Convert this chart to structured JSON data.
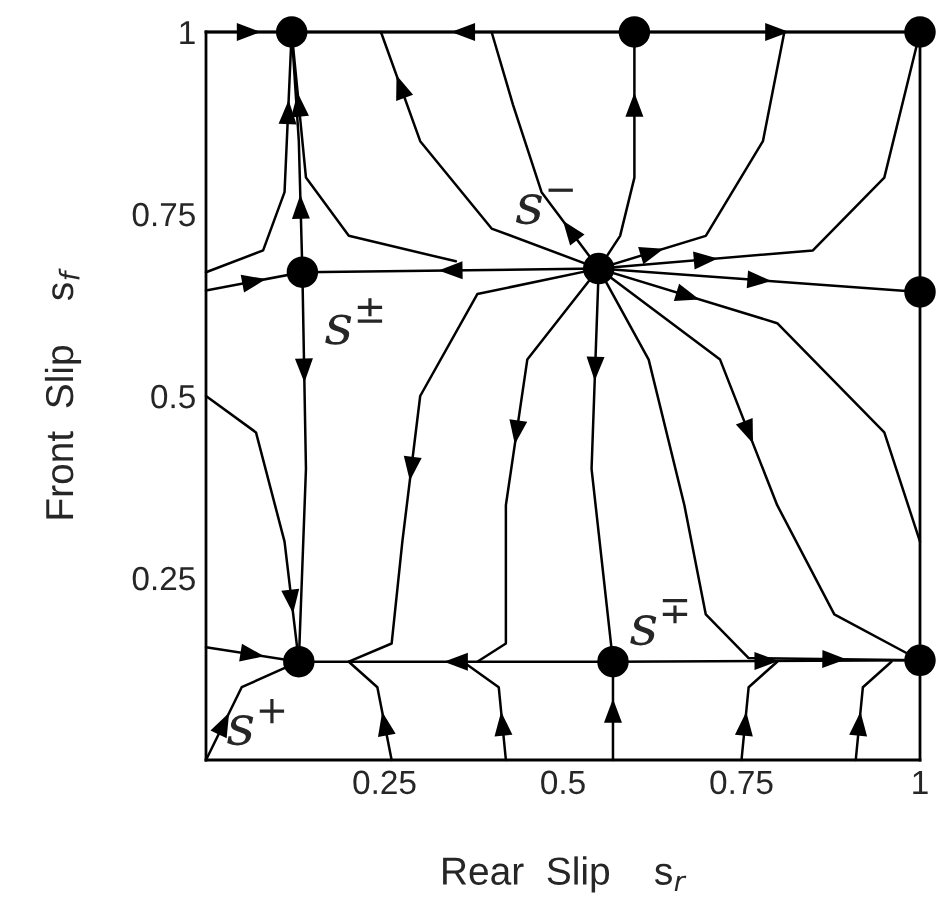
{
  "chart_data": {
    "type": "line",
    "xlabel": "Rear  Slip    s$_{r}$",
    "ylabel": "Front  Slip    s$_{f}$",
    "xlim": [
      0,
      1
    ],
    "ylim": [
      0,
      1
    ],
    "xticks": [
      0.25,
      0.5,
      0.75,
      1
    ],
    "yticks": [
      0.25,
      0.5,
      0.75,
      1
    ],
    "grid": false,
    "legend": false,
    "marker": "none",
    "line_style": "solid",
    "series": [
      {
        "color": "#000000",
        "x": [
          0,
          0.12
        ],
        "values": [
          1,
          1
        ]
      },
      {
        "color": "#000000",
        "x": [
          0.6,
          0.12
        ],
        "values": [
          1,
          1
        ]
      },
      {
        "color": "#000000",
        "x": [
          0.6,
          1
        ],
        "values": [
          1,
          1
        ]
      },
      {
        "color": "#000000",
        "x": [
          0.135,
          0.13,
          0.12
        ],
        "values": [
          0.67,
          0.85,
          1
        ]
      },
      {
        "color": "#000000",
        "x": [
          0.135,
          0.14,
          0.13
        ],
        "values": [
          0.67,
          0.4,
          0.135
        ]
      },
      {
        "color": "#000000",
        "x": [
          0.55,
          0.135
        ],
        "values": [
          0.675,
          0.67
        ]
      },
      {
        "color": "#000000",
        "x": [
          0,
          0.135
        ],
        "values": [
          0.645,
          0.67
        ]
      },
      {
        "color": "#000000",
        "x": [
          0.55,
          1
        ],
        "values": [
          0.675,
          0.643
        ]
      },
      {
        "color": "#000000",
        "x": [
          0.55,
          0.58,
          0.6,
          0.6
        ],
        "values": [
          0.675,
          0.72,
          0.8,
          1
        ]
      },
      {
        "color": "#000000",
        "x": [
          0,
          0.08,
          0.11,
          0.12
        ],
        "values": [
          0.67,
          0.7,
          0.78,
          1
        ]
      },
      {
        "color": "#000000",
        "x": [
          0.35,
          0.2,
          0.14,
          0.12
        ],
        "values": [
          0.685,
          0.72,
          0.8,
          1
        ]
      },
      {
        "color": "#000000",
        "x": [
          0.55,
          0.4,
          0.3,
          0.245
        ],
        "values": [
          0.675,
          0.73,
          0.85,
          1
        ]
      },
      {
        "color": "#000000",
        "x": [
          0.55,
          0.47,
          0.43,
          0.4
        ],
        "values": [
          0.675,
          0.78,
          0.9,
          1
        ]
      },
      {
        "color": "#000000",
        "x": [
          0.55,
          0.7,
          0.78,
          0.81
        ],
        "values": [
          0.675,
          0.72,
          0.85,
          1
        ]
      },
      {
        "color": "#000000",
        "x": [
          0.55,
          0.85,
          0.95,
          1
        ],
        "values": [
          0.675,
          0.7,
          0.8,
          1
        ]
      },
      {
        "color": "#000000",
        "x": [
          0.55,
          0.38,
          0.3,
          0.275,
          0.26,
          0.2
        ],
        "values": [
          0.675,
          0.64,
          0.5,
          0.3,
          0.16,
          0.135
        ]
      },
      {
        "color": "#000000",
        "x": [
          0.55,
          0.45,
          0.42,
          0.42,
          0.38
        ],
        "values": [
          0.675,
          0.55,
          0.35,
          0.16,
          0.135
        ]
      },
      {
        "color": "#000000",
        "x": [
          0.55,
          0.54,
          0.57
        ],
        "values": [
          0.675,
          0.4,
          0.135
        ]
      },
      {
        "color": "#000000",
        "x": [
          0.55,
          0.62,
          0.67,
          0.7,
          0.76,
          1
        ],
        "values": [
          0.675,
          0.55,
          0.35,
          0.2,
          0.14,
          0.137
        ]
      },
      {
        "color": "#000000",
        "x": [
          0.55,
          0.72,
          0.8,
          0.88,
          1
        ],
        "values": [
          0.675,
          0.55,
          0.35,
          0.2,
          0.137
        ]
      },
      {
        "color": "#000000",
        "x": [
          0.55,
          0.8,
          0.95,
          1
        ],
        "values": [
          0.675,
          0.6,
          0.45,
          0.3
        ]
      },
      {
        "color": "#000000",
        "x": [
          0.57,
          0.13
        ],
        "values": [
          0.135,
          0.135
        ]
      },
      {
        "color": "#000000",
        "x": [
          0.57,
          1
        ],
        "values": [
          0.135,
          0.137
        ]
      },
      {
        "color": "#000000",
        "x": [
          0.57,
          0.57
        ],
        "values": [
          0,
          0.135
        ]
      },
      {
        "color": "#000000",
        "x": [
          0.26,
          0.24,
          0.2
        ],
        "values": [
          0,
          0.1,
          0.135
        ]
      },
      {
        "color": "#000000",
        "x": [
          0.42,
          0.41,
          0.36
        ],
        "values": [
          0,
          0.1,
          0.135
        ]
      },
      {
        "color": "#000000",
        "x": [
          0.75,
          0.76,
          0.8
        ],
        "values": [
          0,
          0.1,
          0.135
        ]
      },
      {
        "color": "#000000",
        "x": [
          0.91,
          0.92,
          0.96
        ],
        "values": [
          0,
          0.1,
          0.135
        ]
      },
      {
        "color": "#000000",
        "x": [
          0,
          0.13
        ],
        "values": [
          0.155,
          0.135
        ]
      },
      {
        "color": "#000000",
        "x": [
          0,
          0.05,
          0.13
        ],
        "values": [
          0,
          0.1,
          0.135
        ]
      },
      {
        "color": "#000000",
        "x": [
          0,
          0.07,
          0.11,
          0.13
        ],
        "values": [
          0.5,
          0.45,
          0.3,
          0.135
        ]
      },
      {
        "type": "scatter",
        "marker": "circle",
        "color": "#000000",
        "x": [
          0.12,
          0.6,
          1,
          0.135,
          0.55,
          1,
          0.13,
          0.57,
          1
        ],
        "values": [
          1,
          1,
          1,
          0.67,
          0.675,
          0.643,
          0.135,
          0.135,
          0.137
        ]
      }
    ],
    "annotations": [
      {
        "text": "s$^{−}$",
        "x": 0.55,
        "y": 0.675
      },
      {
        "text": "s$^{±}$",
        "x": 0.135,
        "y": 0.67
      },
      {
        "text": "s$^{∓}$",
        "x": 0.57,
        "y": 0.135
      },
      {
        "text": "s$^{+}$",
        "x": 0.13,
        "y": 0.135
      }
    ]
  }
}
